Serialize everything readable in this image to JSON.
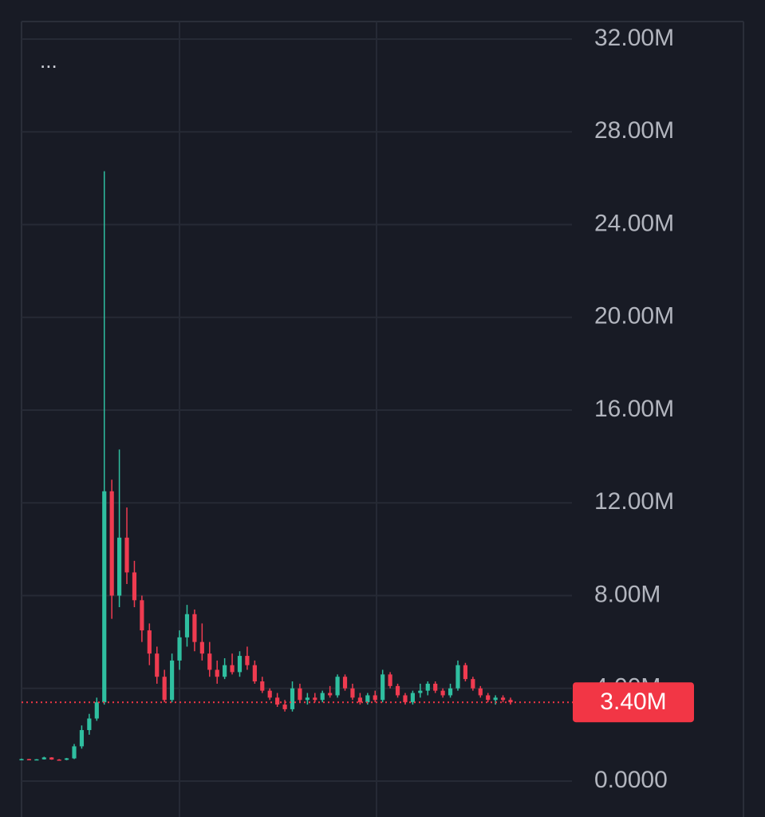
{
  "chart_data": {
    "type": "candlestick",
    "menu_label": "...",
    "up_color": "#2fbfa0",
    "down_color": "#ef3b50",
    "ylim": [
      -1548000,
      32757000
    ],
    "yticks": [
      {
        "value": 0,
        "label": "0.0000"
      },
      {
        "value": 4000000,
        "label": "4.00M"
      },
      {
        "value": 8000000,
        "label": "8.00M"
      },
      {
        "value": 12000000,
        "label": "12.00M"
      },
      {
        "value": 16000000,
        "label": "16.00M"
      },
      {
        "value": 20000000,
        "label": "20.00M"
      },
      {
        "value": 24000000,
        "label": "24.00M"
      },
      {
        "value": 28000000,
        "label": "28.00M"
      },
      {
        "value": 32000000,
        "label": "32.00M"
      }
    ],
    "grid": true,
    "last_price": {
      "value": 3400000,
      "label": "3.40M",
      "color": "#f23645"
    },
    "open": [
      950000,
      950000,
      930000,
      940000,
      1020000,
      930000,
      920000,
      980000,
      1500000,
      2200000,
      2700000,
      3400000,
      12500000,
      8000000,
      10500000,
      9000000,
      7800000,
      6500000,
      5500000,
      4500000,
      3500000,
      5200000,
      6200000,
      7200000,
      6000000,
      5500000,
      4800000,
      4500000,
      5000000,
      4700000,
      5400000,
      5000000,
      4300000,
      3900000,
      3600000,
      3300000,
      3100000,
      4000000,
      3500000,
      3600000,
      3500000,
      3800000,
      3700000,
      4500000,
      4000000,
      3600000,
      3400000,
      3700000,
      3500000,
      4600000,
      4100000,
      3700000,
      3400000,
      3800000,
      3900000,
      4200000,
      3900000,
      3700000,
      4000000,
      5000000,
      4400000,
      4000000,
      3700000,
      3500000,
      3600000,
      3500000
    ],
    "high": [
      970000,
      960000,
      950000,
      1050000,
      1030000,
      950000,
      1000000,
      1600000,
      2400000,
      2900000,
      3600000,
      26300000,
      13000000,
      14300000,
      11800000,
      9500000,
      8000000,
      6800000,
      5800000,
      4800000,
      5500000,
      6500000,
      7600000,
      7400000,
      6800000,
      6000000,
      5200000,
      5300000,
      5500000,
      5600000,
      5800000,
      5200000,
      4500000,
      4000000,
      3800000,
      3500000,
      4300000,
      4200000,
      3800000,
      3800000,
      3900000,
      4100000,
      4600000,
      4600000,
      4200000,
      3800000,
      3800000,
      3900000,
      4800000,
      4700000,
      4200000,
      3800000,
      3900000,
      4200000,
      4300000,
      4300000,
      4000000,
      4200000,
      5200000,
      5100000,
      4500000,
      4100000,
      3800000,
      3700000,
      3700000,
      3600000
    ],
    "low": [
      930000,
      920000,
      910000,
      930000,
      920000,
      900000,
      900000,
      950000,
      1400000,
      2000000,
      2600000,
      3300000,
      7000000,
      7500000,
      8500000,
      7500000,
      6000000,
      5000000,
      4200000,
      3400000,
      3400000,
      4800000,
      5800000,
      5600000,
      5200000,
      4500000,
      4200000,
      4400000,
      4600000,
      4500000,
      4800000,
      4200000,
      3800000,
      3500000,
      3200000,
      3000000,
      3000000,
      3400000,
      3300000,
      3400000,
      3400000,
      3600000,
      3600000,
      3900000,
      3500000,
      3300000,
      3300000,
      3400000,
      3400000,
      4000000,
      3600000,
      3300000,
      3300000,
      3600000,
      3700000,
      3800000,
      3600000,
      3600000,
      3900000,
      4300000,
      3900000,
      3600000,
      3400000,
      3300000,
      3400000,
      3300000
    ],
    "close": [
      950000,
      930000,
      940000,
      1020000,
      930000,
      920000,
      980000,
      1500000,
      2200000,
      2700000,
      3400000,
      12500000,
      8000000,
      10500000,
      9000000,
      7800000,
      6500000,
      5500000,
      4500000,
      3500000,
      5200000,
      6200000,
      7200000,
      6000000,
      5500000,
      4800000,
      4500000,
      5000000,
      4700000,
      5400000,
      5000000,
      4300000,
      3900000,
      3600000,
      3300000,
      3100000,
      4000000,
      3500000,
      3600000,
      3500000,
      3800000,
      3700000,
      4500000,
      4000000,
      3600000,
      3400000,
      3700000,
      3500000,
      4600000,
      4100000,
      3700000,
      3400000,
      3800000,
      3900000,
      4200000,
      3900000,
      3700000,
      4000000,
      5000000,
      4400000,
      4000000,
      3700000,
      3500000,
      3600000,
      3500000,
      3400000
    ]
  }
}
